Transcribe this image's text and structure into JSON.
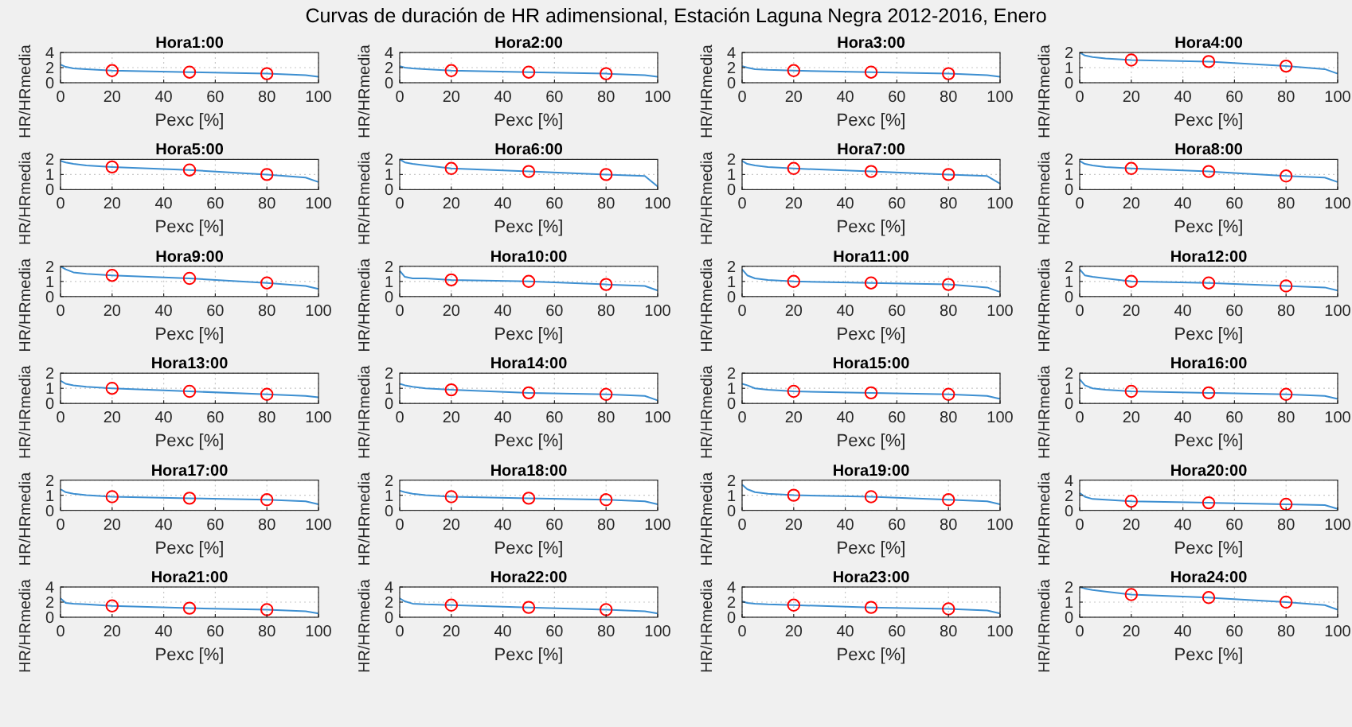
{
  "chart_data": [
    {
      "type": "line",
      "title": "Hora1:00",
      "annotations": [
        "Curvas de duración de HR adimensional, Estación Laguna Negra 2012-2016, Enero"
      ],
      "xlabel": "Pexc [%]",
      "ylabel": "HR/HRmedia",
      "x": [
        0,
        2,
        5,
        10,
        20,
        50,
        80,
        95,
        100
      ],
      "xlim": [
        0,
        100
      ],
      "xticks": [
        0,
        20,
        40,
        60,
        80,
        100
      ],
      "ylim": [
        0,
        4
      ],
      "yticks": [
        0,
        2,
        4
      ],
      "grid": true,
      "series": [
        {
          "type": "line",
          "color": "#3d8fd1",
          "values": [
            2.4,
            2.1,
            1.9,
            1.8,
            1.6,
            1.4,
            1.2,
            1.0,
            0.8
          ]
        },
        {
          "type": "scatter",
          "marker": "circle",
          "color": "#ff0000",
          "x": [
            20,
            50,
            80
          ],
          "values": [
            1.6,
            1.4,
            1.2
          ]
        }
      ]
    },
    {
      "type": "line",
      "title": "Hora2:00",
      "xlabel": "Pexc [%]",
      "ylabel": "HR/HRmedia",
      "x": [
        0,
        2,
        5,
        10,
        20,
        50,
        80,
        95,
        100
      ],
      "xlim": [
        0,
        100
      ],
      "xticks": [
        0,
        20,
        40,
        60,
        80,
        100
      ],
      "ylim": [
        0,
        4
      ],
      "yticks": [
        0,
        2,
        4
      ],
      "grid": true,
      "series": [
        {
          "type": "line",
          "color": "#3d8fd1",
          "values": [
            2.2,
            2.0,
            1.9,
            1.8,
            1.6,
            1.4,
            1.2,
            1.0,
            0.8
          ]
        },
        {
          "type": "scatter",
          "marker": "circle",
          "color": "#ff0000",
          "x": [
            20,
            50,
            80
          ],
          "values": [
            1.6,
            1.4,
            1.2
          ]
        }
      ]
    },
    {
      "type": "line",
      "title": "Hora3:00",
      "xlabel": "Pexc [%]",
      "ylabel": "HR/HRmedia",
      "x": [
        0,
        2,
        5,
        10,
        20,
        50,
        80,
        95,
        100
      ],
      "xlim": [
        0,
        100
      ],
      "xticks": [
        0,
        20,
        40,
        60,
        80,
        100
      ],
      "ylim": [
        0,
        4
      ],
      "yticks": [
        0,
        2,
        4
      ],
      "grid": true,
      "series": [
        {
          "type": "line",
          "color": "#3d8fd1",
          "values": [
            2.2,
            2.0,
            1.8,
            1.7,
            1.6,
            1.4,
            1.2,
            1.0,
            0.8
          ]
        },
        {
          "type": "scatter",
          "marker": "circle",
          "color": "#ff0000",
          "x": [
            20,
            50,
            80
          ],
          "values": [
            1.6,
            1.4,
            1.2
          ]
        }
      ]
    },
    {
      "type": "line",
      "title": "Hora4:00",
      "xlabel": "Pexc [%]",
      "ylabel": "HR/HRmedia",
      "x": [
        0,
        2,
        5,
        10,
        20,
        50,
        80,
        95,
        100
      ],
      "xlim": [
        0,
        100
      ],
      "xticks": [
        0,
        20,
        40,
        60,
        80,
        100
      ],
      "ylim": [
        0,
        2
      ],
      "yticks": [
        0,
        1,
        2
      ],
      "grid": true,
      "series": [
        {
          "type": "line",
          "color": "#3d8fd1",
          "values": [
            2.0,
            1.8,
            1.7,
            1.6,
            1.5,
            1.4,
            1.1,
            0.9,
            0.6
          ]
        },
        {
          "type": "scatter",
          "marker": "circle",
          "color": "#ff0000",
          "x": [
            20,
            50,
            80
          ],
          "values": [
            1.5,
            1.4,
            1.1
          ]
        }
      ]
    },
    {
      "type": "line",
      "title": "Hora5:00",
      "xlabel": "Pexc [%]",
      "ylabel": "HR/HRmedia",
      "x": [
        0,
        2,
        5,
        10,
        20,
        50,
        80,
        95,
        100
      ],
      "xlim": [
        0,
        100
      ],
      "xticks": [
        0,
        20,
        40,
        60,
        80,
        100
      ],
      "ylim": [
        0,
        2
      ],
      "yticks": [
        0,
        1,
        2
      ],
      "grid": true,
      "series": [
        {
          "type": "line",
          "color": "#3d8fd1",
          "values": [
            1.9,
            1.8,
            1.7,
            1.6,
            1.5,
            1.3,
            1.0,
            0.8,
            0.5
          ]
        },
        {
          "type": "scatter",
          "marker": "circle",
          "color": "#ff0000",
          "x": [
            20,
            50,
            80
          ],
          "values": [
            1.5,
            1.3,
            1.0
          ]
        }
      ]
    },
    {
      "type": "line",
      "title": "Hora6:00",
      "xlabel": "Pexc [%]",
      "ylabel": "HR/HRmedia",
      "x": [
        0,
        2,
        5,
        10,
        20,
        50,
        80,
        95,
        100
      ],
      "xlim": [
        0,
        100
      ],
      "xticks": [
        0,
        20,
        40,
        60,
        80,
        100
      ],
      "ylim": [
        0,
        2
      ],
      "yticks": [
        0,
        1,
        2
      ],
      "grid": true,
      "series": [
        {
          "type": "line",
          "color": "#3d8fd1",
          "values": [
            2.0,
            1.8,
            1.7,
            1.6,
            1.4,
            1.2,
            1.0,
            0.9,
            0.2
          ]
        },
        {
          "type": "scatter",
          "marker": "circle",
          "color": "#ff0000",
          "x": [
            20,
            50,
            80
          ],
          "values": [
            1.4,
            1.2,
            1.0
          ]
        }
      ]
    },
    {
      "type": "line",
      "title": "Hora7:00",
      "xlabel": "Pexc [%]",
      "ylabel": "HR/HRmedia",
      "x": [
        0,
        2,
        5,
        10,
        20,
        50,
        80,
        95,
        100
      ],
      "xlim": [
        0,
        100
      ],
      "xticks": [
        0,
        20,
        40,
        60,
        80,
        100
      ],
      "ylim": [
        0,
        2
      ],
      "yticks": [
        0,
        1,
        2
      ],
      "grid": true,
      "series": [
        {
          "type": "line",
          "color": "#3d8fd1",
          "values": [
            1.9,
            1.7,
            1.6,
            1.5,
            1.4,
            1.2,
            1.0,
            0.9,
            0.4
          ]
        },
        {
          "type": "scatter",
          "marker": "circle",
          "color": "#ff0000",
          "x": [
            20,
            50,
            80
          ],
          "values": [
            1.4,
            1.2,
            1.0
          ]
        }
      ]
    },
    {
      "type": "line",
      "title": "Hora8:00",
      "xlabel": "Pexc [%]",
      "ylabel": "HR/HRmedia",
      "x": [
        0,
        2,
        5,
        10,
        20,
        50,
        80,
        95,
        100
      ],
      "xlim": [
        0,
        100
      ],
      "xticks": [
        0,
        20,
        40,
        60,
        80,
        100
      ],
      "ylim": [
        0,
        2
      ],
      "yticks": [
        0,
        1,
        2
      ],
      "grid": true,
      "series": [
        {
          "type": "line",
          "color": "#3d8fd1",
          "values": [
            1.9,
            1.7,
            1.6,
            1.5,
            1.4,
            1.2,
            0.9,
            0.8,
            0.5
          ]
        },
        {
          "type": "scatter",
          "marker": "circle",
          "color": "#ff0000",
          "x": [
            20,
            50,
            80
          ],
          "values": [
            1.4,
            1.2,
            0.9
          ]
        }
      ]
    },
    {
      "type": "line",
      "title": "Hora9:00",
      "xlabel": "Pexc [%]",
      "ylabel": "HR/HRmedia",
      "x": [
        0,
        2,
        5,
        10,
        20,
        50,
        80,
        95,
        100
      ],
      "xlim": [
        0,
        100
      ],
      "xticks": [
        0,
        20,
        40,
        60,
        80,
        100
      ],
      "ylim": [
        0,
        2
      ],
      "yticks": [
        0,
        1,
        2
      ],
      "grid": true,
      "series": [
        {
          "type": "line",
          "color": "#3d8fd1",
          "values": [
            2.0,
            1.8,
            1.6,
            1.5,
            1.4,
            1.2,
            0.9,
            0.7,
            0.5
          ]
        },
        {
          "type": "scatter",
          "marker": "circle",
          "color": "#ff0000",
          "x": [
            20,
            50,
            80
          ],
          "values": [
            1.4,
            1.2,
            0.9
          ]
        }
      ]
    },
    {
      "type": "line",
      "title": "Hora10:00",
      "xlabel": "Pexc [%]",
      "ylabel": "HR/HRmedia",
      "x": [
        0,
        2,
        5,
        10,
        20,
        50,
        80,
        95,
        100
      ],
      "xlim": [
        0,
        100
      ],
      "xticks": [
        0,
        20,
        40,
        60,
        80,
        100
      ],
      "ylim": [
        0,
        2
      ],
      "yticks": [
        0,
        1,
        2
      ],
      "grid": true,
      "series": [
        {
          "type": "line",
          "color": "#3d8fd1",
          "values": [
            1.7,
            1.3,
            1.2,
            1.2,
            1.1,
            1.0,
            0.8,
            0.7,
            0.4
          ]
        },
        {
          "type": "scatter",
          "marker": "circle",
          "color": "#ff0000",
          "x": [
            20,
            50,
            80
          ],
          "values": [
            1.1,
            1.0,
            0.8
          ]
        }
      ]
    },
    {
      "type": "line",
      "title": "Hora11:00",
      "xlabel": "Pexc [%]",
      "ylabel": "HR/HRmedia",
      "x": [
        0,
        2,
        5,
        10,
        20,
        50,
        80,
        95,
        100
      ],
      "xlim": [
        0,
        100
      ],
      "xticks": [
        0,
        20,
        40,
        60,
        80,
        100
      ],
      "ylim": [
        0,
        2
      ],
      "yticks": [
        0,
        1,
        2
      ],
      "grid": true,
      "series": [
        {
          "type": "line",
          "color": "#3d8fd1",
          "values": [
            1.8,
            1.4,
            1.2,
            1.1,
            1.0,
            0.9,
            0.8,
            0.6,
            0.3
          ]
        },
        {
          "type": "scatter",
          "marker": "circle",
          "color": "#ff0000",
          "x": [
            20,
            50,
            80
          ],
          "values": [
            1.0,
            0.9,
            0.8
          ]
        }
      ]
    },
    {
      "type": "line",
      "title": "Hora12:00",
      "xlabel": "Pexc [%]",
      "ylabel": "HR/HRmedia",
      "x": [
        0,
        2,
        5,
        10,
        20,
        50,
        80,
        95,
        100
      ],
      "xlim": [
        0,
        100
      ],
      "xticks": [
        0,
        20,
        40,
        60,
        80,
        100
      ],
      "ylim": [
        0,
        2
      ],
      "yticks": [
        0,
        1,
        2
      ],
      "grid": true,
      "series": [
        {
          "type": "line",
          "color": "#3d8fd1",
          "values": [
            1.8,
            1.4,
            1.3,
            1.2,
            1.0,
            0.9,
            0.7,
            0.6,
            0.4
          ]
        },
        {
          "type": "scatter",
          "marker": "circle",
          "color": "#ff0000",
          "x": [
            20,
            50,
            80
          ],
          "values": [
            1.0,
            0.9,
            0.7
          ]
        }
      ]
    },
    {
      "type": "line",
      "title": "Hora13:00",
      "xlabel": "Pexc [%]",
      "ylabel": "HR/HRmedia",
      "x": [
        0,
        2,
        5,
        10,
        20,
        50,
        80,
        95,
        100
      ],
      "xlim": [
        0,
        100
      ],
      "xticks": [
        0,
        20,
        40,
        60,
        80,
        100
      ],
      "ylim": [
        0,
        2
      ],
      "yticks": [
        0,
        1,
        2
      ],
      "grid": true,
      "series": [
        {
          "type": "line",
          "color": "#3d8fd1",
          "values": [
            1.5,
            1.3,
            1.2,
            1.1,
            1.0,
            0.8,
            0.6,
            0.5,
            0.4
          ]
        },
        {
          "type": "scatter",
          "marker": "circle",
          "color": "#ff0000",
          "x": [
            20,
            50,
            80
          ],
          "values": [
            1.0,
            0.8,
            0.6
          ]
        }
      ]
    },
    {
      "type": "line",
      "title": "Hora14:00",
      "xlabel": "Pexc [%]",
      "ylabel": "HR/HRmedia",
      "x": [
        0,
        2,
        5,
        10,
        20,
        50,
        80,
        95,
        100
      ],
      "xlim": [
        0,
        100
      ],
      "xticks": [
        0,
        20,
        40,
        60,
        80,
        100
      ],
      "ylim": [
        0,
        2
      ],
      "yticks": [
        0,
        1,
        2
      ],
      "grid": true,
      "series": [
        {
          "type": "line",
          "color": "#3d8fd1",
          "values": [
            1.3,
            1.2,
            1.1,
            1.0,
            0.9,
            0.7,
            0.6,
            0.5,
            0.2
          ]
        },
        {
          "type": "scatter",
          "marker": "circle",
          "color": "#ff0000",
          "x": [
            20,
            50,
            80
          ],
          "values": [
            0.9,
            0.7,
            0.6
          ]
        }
      ]
    },
    {
      "type": "line",
      "title": "Hora15:00",
      "xlabel": "Pexc [%]",
      "ylabel": "HR/HRmedia",
      "x": [
        0,
        2,
        5,
        10,
        20,
        50,
        80,
        95,
        100
      ],
      "xlim": [
        0,
        100
      ],
      "xticks": [
        0,
        20,
        40,
        60,
        80,
        100
      ],
      "ylim": [
        0,
        2
      ],
      "yticks": [
        0,
        1,
        2
      ],
      "grid": true,
      "series": [
        {
          "type": "line",
          "color": "#3d8fd1",
          "values": [
            1.3,
            1.2,
            1.0,
            0.9,
            0.8,
            0.7,
            0.6,
            0.5,
            0.3
          ]
        },
        {
          "type": "scatter",
          "marker": "circle",
          "color": "#ff0000",
          "x": [
            20,
            50,
            80
          ],
          "values": [
            0.8,
            0.7,
            0.6
          ]
        }
      ]
    },
    {
      "type": "line",
      "title": "Hora16:00",
      "xlabel": "Pexc [%]",
      "ylabel": "HR/HRmedia",
      "x": [
        0,
        2,
        5,
        10,
        20,
        50,
        80,
        95,
        100
      ],
      "xlim": [
        0,
        100
      ],
      "xticks": [
        0,
        20,
        40,
        60,
        80,
        100
      ],
      "ylim": [
        0,
        2
      ],
      "yticks": [
        0,
        1,
        2
      ],
      "grid": true,
      "series": [
        {
          "type": "line",
          "color": "#3d8fd1",
          "values": [
            1.6,
            1.2,
            1.0,
            0.9,
            0.8,
            0.7,
            0.6,
            0.5,
            0.3
          ]
        },
        {
          "type": "scatter",
          "marker": "circle",
          "color": "#ff0000",
          "x": [
            20,
            50,
            80
          ],
          "values": [
            0.8,
            0.7,
            0.6
          ]
        }
      ]
    },
    {
      "type": "line",
      "title": "Hora17:00",
      "xlabel": "Pexc [%]",
      "ylabel": "HR/HRmedia",
      "x": [
        0,
        2,
        5,
        10,
        20,
        50,
        80,
        95,
        100
      ],
      "xlim": [
        0,
        100
      ],
      "xticks": [
        0,
        20,
        40,
        60,
        80,
        100
      ],
      "ylim": [
        0,
        2
      ],
      "yticks": [
        0,
        1,
        2
      ],
      "grid": true,
      "series": [
        {
          "type": "line",
          "color": "#3d8fd1",
          "values": [
            1.4,
            1.2,
            1.1,
            1.0,
            0.9,
            0.8,
            0.7,
            0.6,
            0.4
          ]
        },
        {
          "type": "scatter",
          "marker": "circle",
          "color": "#ff0000",
          "x": [
            20,
            50,
            80
          ],
          "values": [
            0.9,
            0.8,
            0.7
          ]
        }
      ]
    },
    {
      "type": "line",
      "title": "Hora18:00",
      "xlabel": "Pexc [%]",
      "ylabel": "HR/HRmedia",
      "x": [
        0,
        2,
        5,
        10,
        20,
        50,
        80,
        95,
        100
      ],
      "xlim": [
        0,
        100
      ],
      "xticks": [
        0,
        20,
        40,
        60,
        80,
        100
      ],
      "ylim": [
        0,
        2
      ],
      "yticks": [
        0,
        1,
        2
      ],
      "grid": true,
      "series": [
        {
          "type": "line",
          "color": "#3d8fd1",
          "values": [
            1.3,
            1.2,
            1.1,
            1.0,
            0.9,
            0.8,
            0.7,
            0.6,
            0.4
          ]
        },
        {
          "type": "scatter",
          "marker": "circle",
          "color": "#ff0000",
          "x": [
            20,
            50,
            80
          ],
          "values": [
            0.9,
            0.8,
            0.7
          ]
        }
      ]
    },
    {
      "type": "line",
      "title": "Hora19:00",
      "xlabel": "Pexc [%]",
      "ylabel": "HR/HRmedia",
      "x": [
        0,
        2,
        5,
        10,
        20,
        50,
        80,
        95,
        100
      ],
      "xlim": [
        0,
        100
      ],
      "xticks": [
        0,
        20,
        40,
        60,
        80,
        100
      ],
      "ylim": [
        0,
        2
      ],
      "yticks": [
        0,
        1,
        2
      ],
      "grid": true,
      "series": [
        {
          "type": "line",
          "color": "#3d8fd1",
          "values": [
            1.7,
            1.4,
            1.2,
            1.1,
            1.0,
            0.9,
            0.7,
            0.6,
            0.4
          ]
        },
        {
          "type": "scatter",
          "marker": "circle",
          "color": "#ff0000",
          "x": [
            20,
            50,
            80
          ],
          "values": [
            1.0,
            0.9,
            0.7
          ]
        }
      ]
    },
    {
      "type": "line",
      "title": "Hora20:00",
      "xlabel": "Pexc [%]",
      "ylabel": "HR/HRmedia",
      "x": [
        0,
        2,
        5,
        10,
        20,
        50,
        80,
        95,
        100
      ],
      "xlim": [
        0,
        100
      ],
      "xticks": [
        0,
        20,
        40,
        60,
        80,
        100
      ],
      "ylim": [
        0,
        4
      ],
      "yticks": [
        0,
        2,
        4
      ],
      "grid": true,
      "series": [
        {
          "type": "line",
          "color": "#3d8fd1",
          "values": [
            2.3,
            1.8,
            1.5,
            1.4,
            1.2,
            1.0,
            0.8,
            0.7,
            0.2
          ]
        },
        {
          "type": "scatter",
          "marker": "circle",
          "color": "#ff0000",
          "x": [
            20,
            50,
            80
          ],
          "values": [
            1.2,
            1.0,
            0.8
          ]
        }
      ]
    },
    {
      "type": "line",
      "title": "Hora21:00",
      "xlabel": "Pexc [%]",
      "ylabel": "HR/HRmedia",
      "x": [
        0,
        2,
        5,
        10,
        20,
        50,
        80,
        95,
        100
      ],
      "xlim": [
        0,
        100
      ],
      "xticks": [
        0,
        20,
        40,
        60,
        80,
        100
      ],
      "ylim": [
        0,
        4
      ],
      "yticks": [
        0,
        2,
        4
      ],
      "grid": true,
      "series": [
        {
          "type": "line",
          "color": "#3d8fd1",
          "values": [
            2.5,
            1.9,
            1.8,
            1.7,
            1.5,
            1.2,
            1.0,
            0.8,
            0.5
          ]
        },
        {
          "type": "scatter",
          "marker": "circle",
          "color": "#ff0000",
          "x": [
            20,
            50,
            80
          ],
          "values": [
            1.5,
            1.2,
            1.0
          ]
        }
      ]
    },
    {
      "type": "line",
      "title": "Hora22:00",
      "xlabel": "Pexc [%]",
      "ylabel": "HR/HRmedia",
      "x": [
        0,
        2,
        5,
        10,
        20,
        50,
        80,
        95,
        100
      ],
      "xlim": [
        0,
        100
      ],
      "xticks": [
        0,
        20,
        40,
        60,
        80,
        100
      ],
      "ylim": [
        0,
        4
      ],
      "yticks": [
        0,
        2,
        4
      ],
      "grid": true,
      "series": [
        {
          "type": "line",
          "color": "#3d8fd1",
          "values": [
            2.5,
            2.1,
            1.8,
            1.7,
            1.6,
            1.3,
            1.0,
            0.8,
            0.5
          ]
        },
        {
          "type": "scatter",
          "marker": "circle",
          "color": "#ff0000",
          "x": [
            20,
            50,
            80
          ],
          "values": [
            1.6,
            1.3,
            1.0
          ]
        }
      ]
    },
    {
      "type": "line",
      "title": "Hora23:00",
      "xlabel": "Pexc [%]",
      "ylabel": "HR/HRmedia",
      "x": [
        0,
        2,
        5,
        10,
        20,
        50,
        80,
        95,
        100
      ],
      "xlim": [
        0,
        100
      ],
      "xticks": [
        0,
        20,
        40,
        60,
        80,
        100
      ],
      "ylim": [
        0,
        4
      ],
      "yticks": [
        0,
        2,
        4
      ],
      "grid": true,
      "series": [
        {
          "type": "line",
          "color": "#3d8fd1",
          "values": [
            2.1,
            1.9,
            1.8,
            1.7,
            1.6,
            1.3,
            1.1,
            0.9,
            0.5
          ]
        },
        {
          "type": "scatter",
          "marker": "circle",
          "color": "#ff0000",
          "x": [
            20,
            50,
            80
          ],
          "values": [
            1.6,
            1.3,
            1.1
          ]
        }
      ]
    },
    {
      "type": "line",
      "title": "Hora24:00",
      "xlabel": "Pexc [%]",
      "ylabel": "HR/HRmedia",
      "x": [
        0,
        2,
        5,
        10,
        20,
        50,
        80,
        95,
        100
      ],
      "xlim": [
        0,
        100
      ],
      "xticks": [
        0,
        20,
        40,
        60,
        80,
        100
      ],
      "ylim": [
        0,
        2
      ],
      "yticks": [
        0,
        1,
        2
      ],
      "grid": true,
      "series": [
        {
          "type": "line",
          "color": "#3d8fd1",
          "values": [
            2.0,
            1.9,
            1.8,
            1.7,
            1.5,
            1.3,
            1.0,
            0.8,
            0.5
          ]
        },
        {
          "type": "scatter",
          "marker": "circle",
          "color": "#ff0000",
          "x": [
            20,
            50,
            80
          ],
          "values": [
            1.5,
            1.3,
            1.0
          ]
        }
      ]
    }
  ]
}
